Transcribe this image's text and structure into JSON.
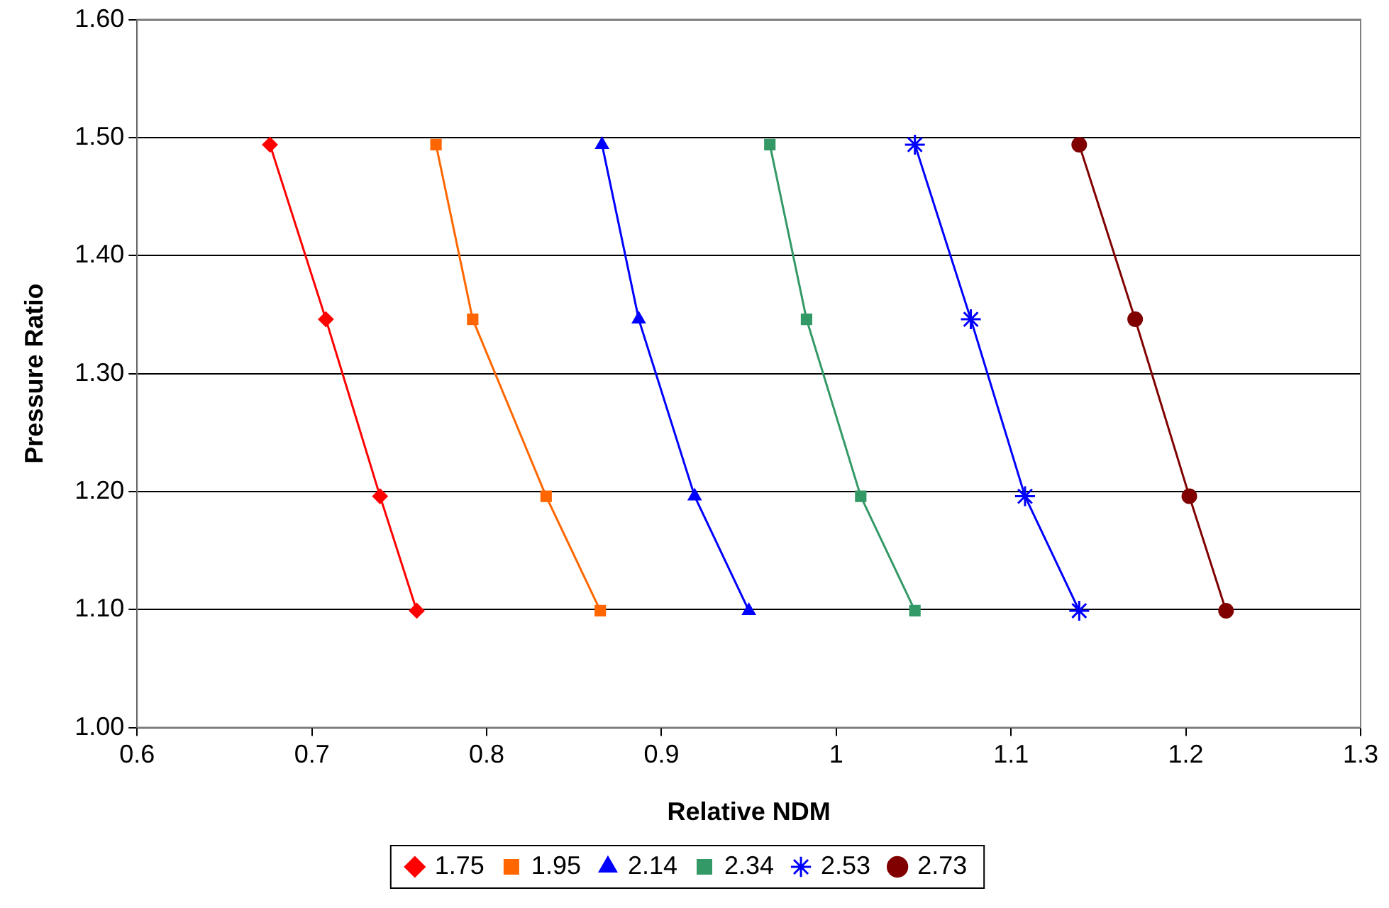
{
  "chart_data": {
    "type": "line",
    "xlabel": "Relative NDM",
    "ylabel": "Pressure Ratio",
    "xlim": [
      0.6,
      1.3
    ],
    "xticks": [
      0.6,
      0.7,
      0.8,
      0.9,
      1,
      1.1,
      1.2,
      1.3
    ],
    "ylim": [
      1.0,
      1.6
    ],
    "yticks": [
      {
        "value": 1.0,
        "label": "1.00"
      },
      {
        "value": 1.1,
        "label": "1.10"
      },
      {
        "value": 1.2,
        "label": "1.20"
      },
      {
        "value": 1.3,
        "label": "1.30"
      },
      {
        "value": 1.4,
        "label": "1.40"
      },
      {
        "value": 1.5,
        "label": "1.50"
      },
      {
        "value": 1.6,
        "label": "1.60"
      }
    ],
    "grid": "y",
    "legend": "bottom",
    "line_style": "solid",
    "series": [
      {
        "name": "1.75",
        "color": "#ff0000",
        "marker": "diamond",
        "x": [
          0.676,
          0.708,
          0.739,
          0.76
        ],
        "values": [
          1.494,
          1.346,
          1.196,
          1.099
        ]
      },
      {
        "name": "1.95",
        "color": "#ff6600",
        "marker": "square",
        "x": [
          0.771,
          0.792,
          0.834,
          0.865
        ],
        "values": [
          1.494,
          1.346,
          1.196,
          1.099
        ]
      },
      {
        "name": "2.14",
        "color": "#0000ff",
        "marker": "triangle",
        "x": [
          0.866,
          0.887,
          0.919,
          0.95
        ],
        "values": [
          1.494,
          1.346,
          1.196,
          1.099
        ]
      },
      {
        "name": "2.34",
        "color": "#339966",
        "marker": "square",
        "x": [
          0.962,
          0.983,
          1.014,
          1.045
        ],
        "values": [
          1.494,
          1.346,
          1.196,
          1.099
        ]
      },
      {
        "name": "2.53",
        "color": "#0000ff",
        "marker": "cross",
        "x": [
          1.045,
          1.077,
          1.108,
          1.139
        ],
        "values": [
          1.494,
          1.346,
          1.196,
          1.099
        ]
      },
      {
        "name": "2.73",
        "color": "#800000",
        "marker": "circle",
        "x": [
          1.139,
          1.171,
          1.202,
          1.223
        ],
        "values": [
          1.494,
          1.346,
          1.196,
          1.099
        ]
      }
    ]
  }
}
